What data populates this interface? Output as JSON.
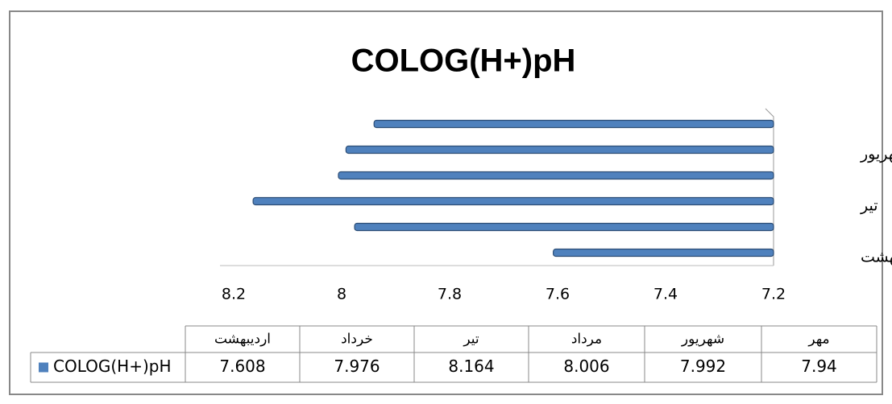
{
  "chart_data": {
    "type": "bar",
    "orientation": "horizontal",
    "title": "COLOG(H+)pH",
    "categories": [
      "اردیبهشت",
      "خرداد",
      "تیر",
      "مرداد",
      "شهریور",
      "مهر"
    ],
    "series": [
      {
        "name": "COLOG(H+)pH",
        "color": "#4f81bd",
        "values": [
          7.608,
          7.976,
          8.164,
          8.006,
          7.992,
          7.94
        ]
      }
    ],
    "xlim": [
      8.2,
      7.2
    ],
    "xticks": [
      8.2,
      8,
      7.8,
      7.6,
      7.4,
      7.2
    ],
    "data_table": true
  }
}
